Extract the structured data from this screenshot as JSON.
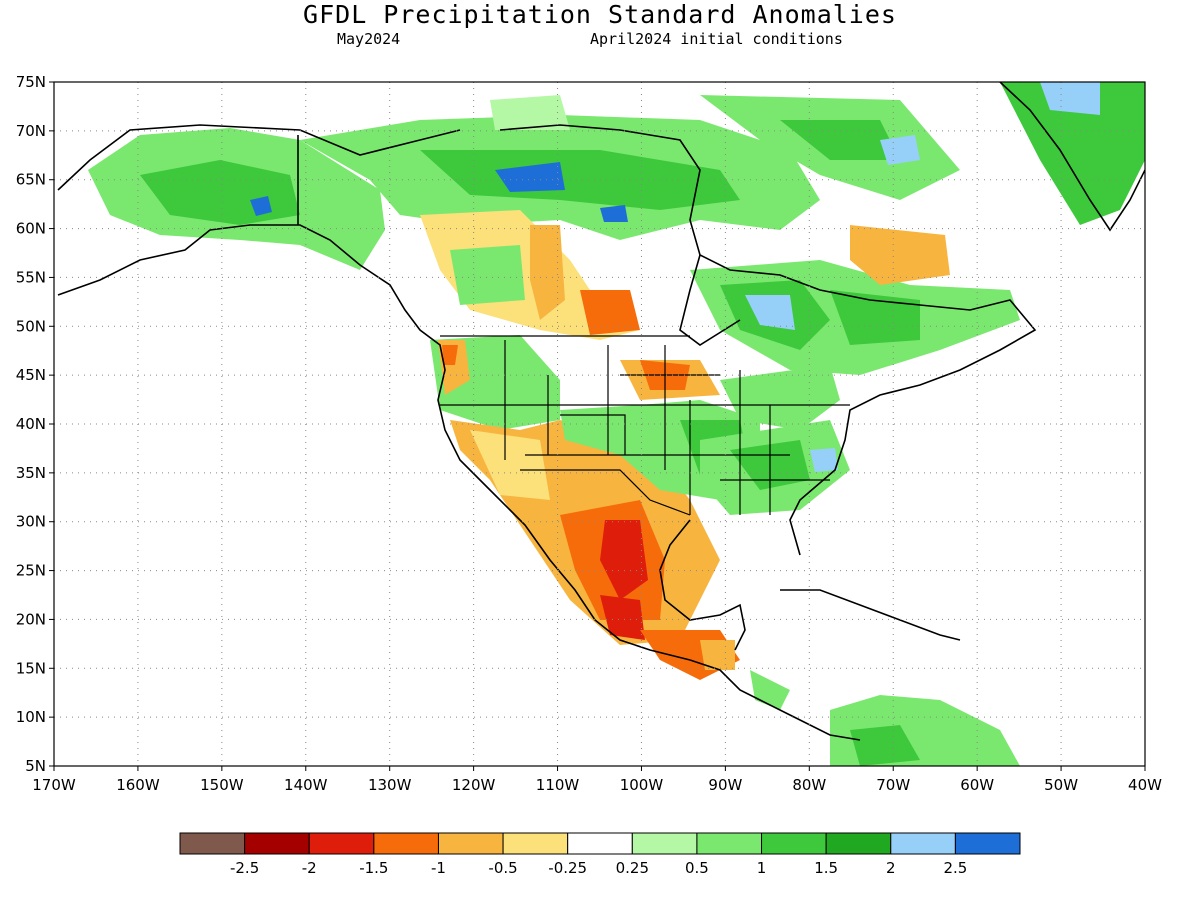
{
  "header": {
    "title": "GFDL Precipitation Standard Anomalies",
    "target_month": "May2024",
    "init_conditions": "April2024 initial conditions"
  },
  "map": {
    "lat_ticks": [
      "75N",
      "70N",
      "65N",
      "60N",
      "55N",
      "50N",
      "45N",
      "40N",
      "35N",
      "30N",
      "25N",
      "20N",
      "15N",
      "10N",
      "5N"
    ],
    "lon_ticks": [
      "170W",
      "160W",
      "150W",
      "140W",
      "130W",
      "120W",
      "110W",
      "100W",
      "90W",
      "80W",
      "70W",
      "60W",
      "50W",
      "40W"
    ],
    "lat_range": [
      5,
      75
    ],
    "lon_range": [
      -170,
      -40
    ],
    "gridlines": "dotted"
  },
  "colorbar": {
    "colors": [
      "#7f5a4c",
      "#a50000",
      "#de1e0a",
      "#f76c0a",
      "#f7b540",
      "#fce07a",
      "#ffffff",
      "#b4f8a5",
      "#7ae86e",
      "#3ec83c",
      "#20a820",
      "#96d0f8",
      "#1e6ed8"
    ],
    "labels": [
      "-2.5",
      "-2",
      "-1.5",
      "-1",
      "-0.5",
      "-0.25",
      "0.25",
      "0.5",
      "1",
      "1.5",
      "2",
      "2.5"
    ]
  }
}
